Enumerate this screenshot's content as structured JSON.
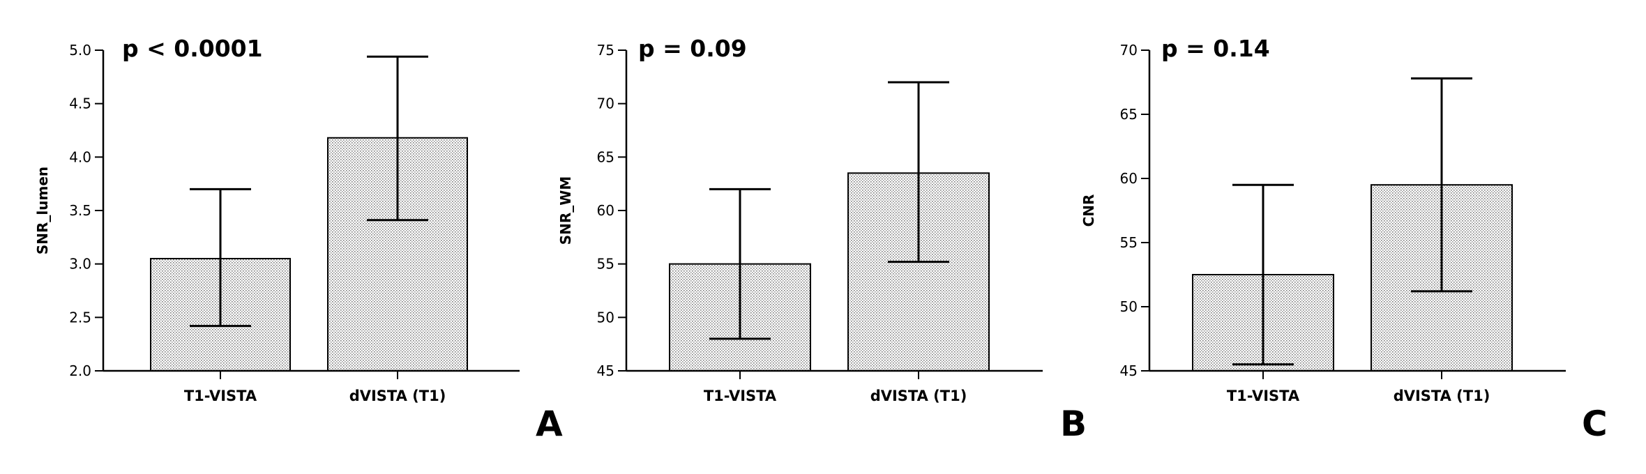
{
  "colors": {
    "bar_fill": "#e6e6e6",
    "stroke": "#000000",
    "background": "#ffffff"
  },
  "chart_data": [
    {
      "type": "bar",
      "panel_label": "A",
      "annotation": "p < 0.0001",
      "ylabel": "SNR_lumen",
      "xlabel": "",
      "categories": [
        "T1-VISTA",
        "dVISTA (T1)"
      ],
      "values": [
        3.05,
        4.18
      ],
      "error_low": [
        2.42,
        3.41
      ],
      "error_high": [
        3.7,
        4.94
      ],
      "ylim": [
        2.0,
        5.0
      ],
      "yticks": [
        2.0,
        2.5,
        3.0,
        3.5,
        4.0,
        4.5,
        5.0
      ],
      "ytick_labels": [
        "2.0",
        "2.5",
        "3.0",
        "3.5",
        "4.0",
        "4.5",
        "5.0"
      ],
      "grid": false,
      "bar_pattern": "dotted"
    },
    {
      "type": "bar",
      "panel_label": "B",
      "annotation": "p = 0.09",
      "ylabel": "SNR_WM",
      "xlabel": "",
      "categories": [
        "T1-VISTA",
        "dVISTA (T1)"
      ],
      "values": [
        55.0,
        63.5
      ],
      "error_low": [
        48.0,
        55.2
      ],
      "error_high": [
        62.0,
        72.0
      ],
      "ylim": [
        45,
        75
      ],
      "yticks": [
        45,
        50,
        55,
        60,
        65,
        70,
        75
      ],
      "ytick_labels": [
        "45",
        "50",
        "55",
        "60",
        "65",
        "70",
        "75"
      ],
      "grid": false,
      "bar_pattern": "dotted"
    },
    {
      "type": "bar",
      "panel_label": "C",
      "annotation": "p = 0.14",
      "ylabel": "CNR",
      "xlabel": "",
      "categories": [
        "T1-VISTA",
        "dVISTA (T1)"
      ],
      "values": [
        52.5,
        59.5
      ],
      "error_low": [
        45.5,
        51.2
      ],
      "error_high": [
        59.5,
        67.8
      ],
      "ylim": [
        45,
        70
      ],
      "yticks": [
        45,
        50,
        55,
        60,
        65,
        70
      ],
      "ytick_labels": [
        "45",
        "50",
        "55",
        "60",
        "65",
        "70"
      ],
      "grid": false,
      "bar_pattern": "dotted"
    }
  ]
}
